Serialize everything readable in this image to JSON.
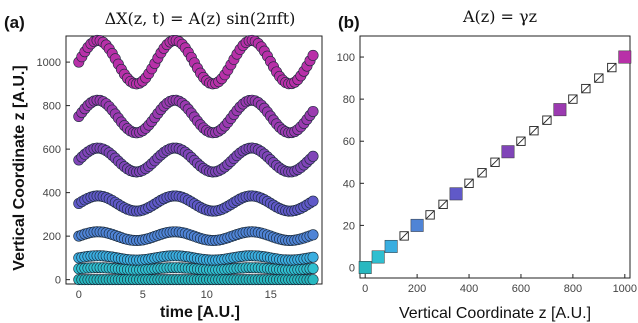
{
  "panels": {
    "a": {
      "label": "(a)",
      "title": "ΔX(z, t) = A(z)  sin(2πft)",
      "xlabel": "time [A.U.]",
      "ylabel": "Vertical Coordinate z [A.U.]"
    },
    "b": {
      "label": "(b)",
      "title": "A(z) = γz",
      "xlabel": "Vertical Coordinate z [A.U.]",
      "ylabel": ""
    }
  },
  "chart_data": [
    {
      "type": "scatter",
      "title": "ΔX(z, t) = A(z)  sin(2πft)",
      "xlabel": "time [A.U.]",
      "ylabel": "Vertical Coordinate z [A.U.]",
      "xlim": [
        -1,
        19
      ],
      "ylim": [
        -20,
        1120
      ],
      "xticks": [
        0,
        5,
        10,
        15
      ],
      "yticks": [
        0,
        200,
        400,
        600,
        800,
        1000
      ],
      "grid": false,
      "t_range": [
        0,
        18.3
      ],
      "period": 6,
      "series": [
        {
          "z": 0,
          "amplitude": 0,
          "color": "#27b8c0"
        },
        {
          "z": 50,
          "amplitude": 5,
          "color": "#2fbfd0"
        },
        {
          "z": 100,
          "amplitude": 10,
          "color": "#3aaee0"
        },
        {
          "z": 200,
          "amplitude": 20,
          "color": "#4f84d6"
        },
        {
          "z": 350,
          "amplitude": 35,
          "color": "#6059c8"
        },
        {
          "z": 550,
          "amplitude": 55,
          "color": "#8045b8"
        },
        {
          "z": 750,
          "amplitude": 75,
          "color": "#9b3ab0"
        },
        {
          "z": 1000,
          "amplitude": 100,
          "color": "#b830a8"
        }
      ]
    },
    {
      "type": "scatter",
      "title": "A(z) = γz",
      "xlabel": "Vertical Coordinate z [A.U.]",
      "ylabel": "",
      "xlim": [
        -20,
        1020
      ],
      "ylim": [
        -5,
        110
      ],
      "xticks": [
        0,
        200,
        400,
        600,
        800,
        1000
      ],
      "yticks": [
        0,
        20,
        40,
        60,
        80,
        100
      ],
      "grid": false,
      "colored_points": [
        {
          "x": 0,
          "y": 0,
          "color": "#27b8c0"
        },
        {
          "x": 50,
          "y": 5,
          "color": "#2fbfd0"
        },
        {
          "x": 100,
          "y": 10,
          "color": "#3aaee0"
        },
        {
          "x": 200,
          "y": 20,
          "color": "#4f84d6"
        },
        {
          "x": 350,
          "y": 35,
          "color": "#6059c8"
        },
        {
          "x": 550,
          "y": 55,
          "color": "#8045b8"
        },
        {
          "x": 750,
          "y": 75,
          "color": "#9b3ab0"
        },
        {
          "x": 1000,
          "y": 100,
          "color": "#b830a8"
        }
      ],
      "reference_points": {
        "x_start": 0,
        "x_end": 1000,
        "x_step": 50,
        "slope": 0.1
      }
    }
  ]
}
